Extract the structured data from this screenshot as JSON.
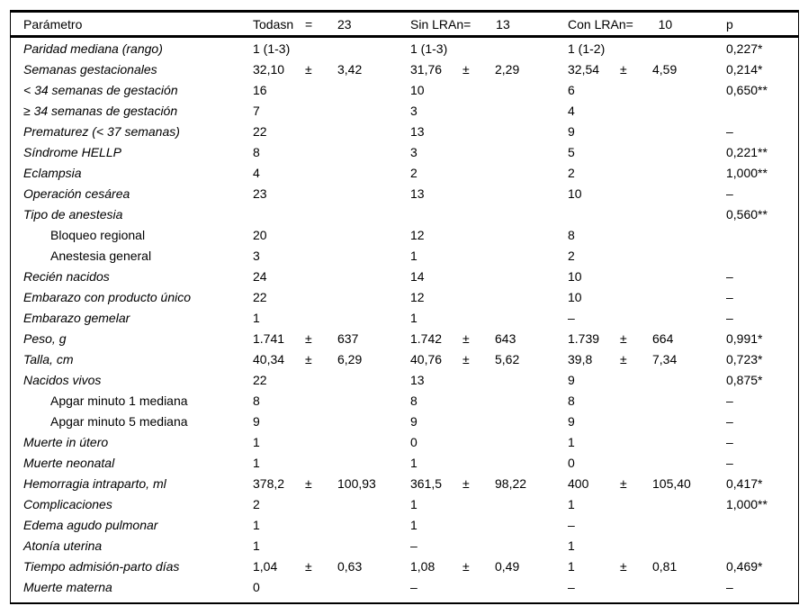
{
  "table": {
    "header": {
      "param": "Parámetro",
      "groups": [
        {
          "name": "Todas",
          "n_label": "n",
          "eq": "=",
          "count": "23"
        },
        {
          "name": "Sin LRA",
          "n_label": "n",
          "eq": "=",
          "count": "13"
        },
        {
          "name": "Con LRA",
          "n_label": "n",
          "eq": "=",
          "count": "10"
        }
      ],
      "p": "p"
    },
    "rows": [
      {
        "label": "Paridad mediana (rango)",
        "italic": true,
        "indent": false,
        "cols": [
          {
            "value": "1 (1-3)"
          },
          {
            "value": "1 (1-3)"
          },
          {
            "value": "1 (1-2)"
          }
        ],
        "p": "0,227*"
      },
      {
        "label": "Semanas gestacionales",
        "italic": true,
        "indent": false,
        "cols": [
          {
            "value": "32,10",
            "pm": "±",
            "sd": "3,42"
          },
          {
            "value": "31,76",
            "pm": "±",
            "sd": "2,29"
          },
          {
            "value": "32,54",
            "pm": "±",
            "sd": "4,59"
          }
        ],
        "p": "0,214*"
      },
      {
        "label": "< 34 semanas de gestación",
        "italic": true,
        "indent": false,
        "cols": [
          {
            "value": "16"
          },
          {
            "value": "10"
          },
          {
            "value": "6"
          }
        ],
        "p": "0,650**"
      },
      {
        "label": "≥ 34 semanas de gestación",
        "italic": true,
        "indent": false,
        "cols": [
          {
            "value": "7"
          },
          {
            "value": "3"
          },
          {
            "value": "4"
          }
        ],
        "p": ""
      },
      {
        "label": "Prematurez (< 37 semanas)",
        "italic": true,
        "indent": false,
        "cols": [
          {
            "value": "22"
          },
          {
            "value": "13"
          },
          {
            "value": "9"
          }
        ],
        "p": "–"
      },
      {
        "label": "Síndrome HELLP",
        "italic": true,
        "indent": false,
        "cols": [
          {
            "value": "8"
          },
          {
            "value": "3"
          },
          {
            "value": "5"
          }
        ],
        "p": "0,221**"
      },
      {
        "label": "Eclampsia",
        "italic": true,
        "indent": false,
        "cols": [
          {
            "value": "4"
          },
          {
            "value": "2"
          },
          {
            "value": "2"
          }
        ],
        "p": "1,000**"
      },
      {
        "label": "Operación cesárea",
        "italic": true,
        "indent": false,
        "cols": [
          {
            "value": "23"
          },
          {
            "value": "13"
          },
          {
            "value": "10"
          }
        ],
        "p": "–"
      },
      {
        "label": "Tipo de anestesia",
        "italic": true,
        "indent": false,
        "cols": [
          null,
          null,
          null
        ],
        "p": "0,560**"
      },
      {
        "label": "Bloqueo regional",
        "italic": false,
        "indent": true,
        "cols": [
          {
            "value": "20"
          },
          {
            "value": "12"
          },
          {
            "value": "8"
          }
        ],
        "p": ""
      },
      {
        "label": "Anestesia general",
        "italic": false,
        "indent": true,
        "cols": [
          {
            "value": "3"
          },
          {
            "value": "1"
          },
          {
            "value": "2"
          }
        ],
        "p": ""
      },
      {
        "label": "Recién nacidos",
        "italic": true,
        "indent": false,
        "cols": [
          {
            "value": "24"
          },
          {
            "value": "14"
          },
          {
            "value": "10"
          }
        ],
        "p": "–"
      },
      {
        "label": "Embarazo con producto único",
        "italic": true,
        "indent": false,
        "cols": [
          {
            "value": "22"
          },
          {
            "value": "12"
          },
          {
            "value": "10"
          }
        ],
        "p": "–"
      },
      {
        "label": "Embarazo gemelar",
        "italic": true,
        "indent": false,
        "cols": [
          {
            "value": "1"
          },
          {
            "value": "1"
          },
          {
            "value": "–"
          }
        ],
        "p": "–"
      },
      {
        "label": "Peso, g",
        "italic": true,
        "indent": false,
        "cols": [
          {
            "value": "1.741",
            "pm": "±",
            "sd": "637"
          },
          {
            "value": "1.742",
            "pm": "±",
            "sd": "643"
          },
          {
            "value": "1.739",
            "pm": "±",
            "sd": "664"
          }
        ],
        "p": "0,991*"
      },
      {
        "label": "Talla, cm",
        "italic": true,
        "indent": false,
        "cols": [
          {
            "value": "40,34",
            "pm": "±",
            "sd": "6,29"
          },
          {
            "value": "40,76",
            "pm": "±",
            "sd": "5,62"
          },
          {
            "value": "39,8",
            "pm": "±",
            "sd": "7,34"
          }
        ],
        "p": "0,723*"
      },
      {
        "label": "Nacidos vivos",
        "italic": true,
        "indent": false,
        "cols": [
          {
            "value": "22"
          },
          {
            "value": "13"
          },
          {
            "value": "9"
          }
        ],
        "p": "0,875*"
      },
      {
        "label": "Apgar minuto 1 mediana",
        "italic": false,
        "indent": true,
        "cols": [
          {
            "value": "8"
          },
          {
            "value": "8"
          },
          {
            "value": "8"
          }
        ],
        "p": "–"
      },
      {
        "label": "Apgar minuto 5 mediana",
        "italic": false,
        "indent": true,
        "cols": [
          {
            "value": "9"
          },
          {
            "value": "9"
          },
          {
            "value": "9"
          }
        ],
        "p": "–"
      },
      {
        "label": "Muerte in útero",
        "italic": true,
        "indent": false,
        "cols": [
          {
            "value": "1"
          },
          {
            "value": "0"
          },
          {
            "value": "1"
          }
        ],
        "p": "–"
      },
      {
        "label": "Muerte neonatal",
        "italic": true,
        "indent": false,
        "cols": [
          {
            "value": "1"
          },
          {
            "value": "1"
          },
          {
            "value": "0"
          }
        ],
        "p": "–"
      },
      {
        "label": "Hemorragia intraparto, ml",
        "italic": true,
        "indent": false,
        "cols": [
          {
            "value": "378,2",
            "pm": "±",
            "sd": "100,93"
          },
          {
            "value": "361,5",
            "pm": "±",
            "sd": "98,22"
          },
          {
            "value": "400",
            "pm": "±",
            "sd": "105,40"
          }
        ],
        "p": "0,417*"
      },
      {
        "label": "Complicaciones",
        "italic": true,
        "indent": false,
        "cols": [
          {
            "value": "2"
          },
          {
            "value": "1"
          },
          {
            "value": "1"
          }
        ],
        "p": "1,000**"
      },
      {
        "label": "Edema agudo pulmonar",
        "italic": true,
        "indent": false,
        "cols": [
          {
            "value": "1"
          },
          {
            "value": "1"
          },
          {
            "value": "–"
          }
        ],
        "p": ""
      },
      {
        "label": "Atonía uterina",
        "italic": true,
        "indent": false,
        "cols": [
          {
            "value": "1"
          },
          {
            "value": "–"
          },
          {
            "value": "1"
          }
        ],
        "p": ""
      },
      {
        "label": "Tiempo admisión-parto días",
        "italic": true,
        "indent": false,
        "cols": [
          {
            "value": "1,04",
            "pm": "±",
            "sd": "0,63"
          },
          {
            "value": "1,08",
            "pm": "±",
            "sd": "0,49"
          },
          {
            "value": "1",
            "pm": "±",
            "sd": "0,81"
          }
        ],
        "p": "0,469*"
      },
      {
        "label": "Muerte materna",
        "italic": true,
        "indent": false,
        "cols": [
          {
            "value": "0"
          },
          {
            "value": "–"
          },
          {
            "value": "–"
          }
        ],
        "p": "–"
      }
    ]
  }
}
